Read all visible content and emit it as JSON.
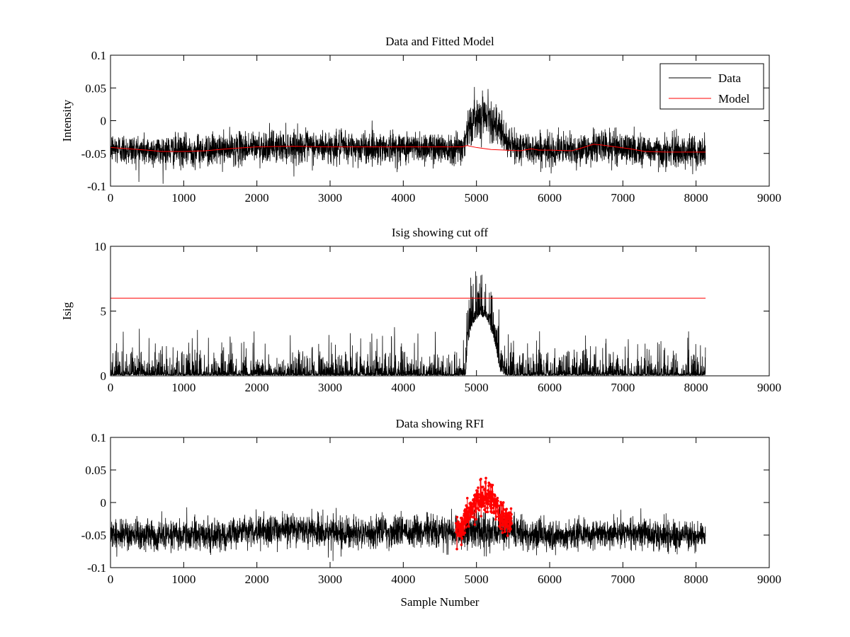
{
  "chart_data": [
    {
      "type": "line",
      "title": "Data and Fitted Model",
      "xlabel": "",
      "ylabel": "Intensity",
      "xlim": [
        0,
        9000
      ],
      "ylim": [
        -0.1,
        0.1
      ],
      "xticks": [
        "0",
        "1000",
        "2000",
        "3000",
        "4000",
        "5000",
        "6000",
        "7000",
        "8000",
        "9000"
      ],
      "yticks": [
        "-0.1",
        "-0.05",
        "0",
        "0.05",
        "0.1"
      ],
      "legend": {
        "placement": "top-right",
        "entries": [
          "Data",
          "Model"
        ]
      },
      "grid": false,
      "series": [
        {
          "name": "Data",
          "color": "#000000",
          "n_samples": 8130,
          "noise_amplitude": 0.012,
          "baseline_x": [
            0,
            500,
            1000,
            1500,
            2000,
            2500,
            3000,
            3500,
            4000,
            4500,
            4800,
            4900,
            5000,
            5100,
            5200,
            5300,
            5400,
            5500,
            6000,
            6500,
            6700,
            7000,
            7500,
            8130
          ],
          "baseline_y": [
            -0.042,
            -0.046,
            -0.046,
            -0.044,
            -0.04,
            -0.039,
            -0.041,
            -0.041,
            -0.041,
            -0.041,
            -0.041,
            -0.01,
            0.006,
            0.011,
            0.006,
            -0.015,
            -0.03,
            -0.04,
            -0.045,
            -0.044,
            -0.038,
            -0.042,
            -0.047,
            -0.047
          ]
        },
        {
          "name": "Model",
          "color": "#ff0000",
          "x": [
            0,
            500,
            700,
            1000,
            1300,
            1600,
            2000,
            2500,
            3000,
            3500,
            4000,
            4500,
            4800,
            4870,
            5000,
            5200,
            5400,
            5600,
            5750,
            5850,
            6000,
            6300,
            6400,
            6600,
            6700,
            6900,
            7100,
            7300,
            7600,
            8130
          ],
          "y": [
            -0.041,
            -0.045,
            -0.047,
            -0.047,
            -0.046,
            -0.043,
            -0.04,
            -0.039,
            -0.04,
            -0.04,
            -0.04,
            -0.04,
            -0.04,
            -0.038,
            -0.041,
            -0.044,
            -0.045,
            -0.046,
            -0.043,
            -0.045,
            -0.045,
            -0.046,
            -0.043,
            -0.036,
            -0.037,
            -0.04,
            -0.043,
            -0.047,
            -0.048,
            -0.048
          ]
        }
      ]
    },
    {
      "type": "line",
      "title": "Isig showing cut off",
      "xlabel": "",
      "ylabel": "Isig",
      "xlim": [
        0,
        9000
      ],
      "ylim": [
        0,
        10
      ],
      "xticks": [
        "0",
        "1000",
        "2000",
        "3000",
        "4000",
        "5000",
        "6000",
        "7000",
        "8000",
        "9000"
      ],
      "yticks": [
        "0",
        "5",
        "10"
      ],
      "grid": false,
      "series": [
        {
          "color": "#000000",
          "n_samples": 8130,
          "noise_amplitude": 1.2,
          "baseline_x": [
            0,
            4850,
            4880,
            4950,
            5050,
            5150,
            5250,
            5320,
            5400,
            8130
          ],
          "baseline_y": [
            0,
            0,
            2.5,
            4.0,
            4.6,
            4.3,
            2.5,
            0.3,
            0,
            0
          ]
        },
        {
          "color": "#ff0000",
          "x": [
            0,
            8130
          ],
          "y": [
            6,
            6
          ]
        }
      ]
    },
    {
      "type": "line",
      "title": "Data showing RFI",
      "xlabel": "Sample Number",
      "ylabel": "",
      "xlim": [
        0,
        9000
      ],
      "ylim": [
        -0.1,
        0.1
      ],
      "xticks": [
        "0",
        "1000",
        "2000",
        "3000",
        "4000",
        "5000",
        "6000",
        "7000",
        "8000",
        "9000"
      ],
      "yticks": [
        "-0.1",
        "-0.05",
        "0",
        "0.05",
        "0.1"
      ],
      "grid": false,
      "series": [
        {
          "color": "#000000",
          "n_samples": 8130,
          "noise_amplitude": 0.012,
          "baseline_x": [
            0,
            500,
            1000,
            1500,
            2000,
            2500,
            3000,
            3500,
            4000,
            4500,
            5000,
            5500,
            6000,
            6500,
            7000,
            7500,
            8130
          ],
          "baseline_y": [
            -0.047,
            -0.05,
            -0.05,
            -0.048,
            -0.043,
            -0.042,
            -0.045,
            -0.045,
            -0.045,
            -0.045,
            -0.045,
            -0.045,
            -0.05,
            -0.048,
            -0.046,
            -0.05,
            -0.052
          ]
        },
        {
          "color": "#ff0000",
          "marker": "dot",
          "n_points": 300,
          "x_range": [
            4720,
            5480
          ],
          "noise_amplitude": 0.012,
          "baseline_x": [
            4720,
            4800,
            4900,
            5000,
            5100,
            5150,
            5200,
            5300,
            5400,
            5480
          ],
          "baseline_y": [
            -0.04,
            -0.035,
            -0.015,
            0.0,
            0.008,
            0.01,
            0.005,
            -0.012,
            -0.03,
            -0.04
          ]
        }
      ]
    }
  ]
}
